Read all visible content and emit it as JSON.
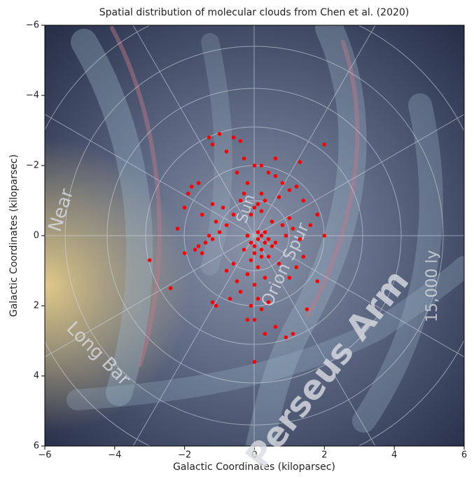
{
  "chart_data": {
    "type": "scatter",
    "title": "Spatial distribution of molecular clouds from Chen et al. (2020)",
    "x_label": "Galactic Coordinates (kiloparsec)",
    "y_label": "Galactic Coordinates (kiloparsec)",
    "color": "#ff0000",
    "annotations": [
      "Sun",
      "Orion Spur",
      "Perseus Arm",
      "Long Bar",
      "Near",
      "15,000 ly"
    ],
    "xlim": [
      -6,
      6
    ],
    "ylim": [
      -6,
      6
    ],
    "y_inverted": true,
    "xticks": [
      {
        "value": -6,
        "label": "−6"
      },
      {
        "value": -4,
        "label": "−4"
      },
      {
        "value": -2,
        "label": "−2"
      },
      0,
      2,
      4,
      6
    ],
    "yticks": [
      {
        "value": -6,
        "label": "−6"
      },
      {
        "value": -4,
        "label": "−4"
      },
      {
        "value": -2,
        "label": "−2"
      },
      0,
      2,
      4,
      6
    ],
    "x": [
      0.1,
      0.2,
      0.3,
      0.0,
      -0.1,
      0.2,
      0.4,
      0.1,
      0.3,
      -0.2,
      0.0,
      0.2,
      -0.1,
      0.4,
      0.5,
      -0.3,
      0.1,
      -0.2,
      0.0,
      0.3,
      -0.4,
      0.1,
      0.2,
      -0.1,
      -0.2,
      0.0,
      0.4,
      -0.5,
      0.0,
      0.1,
      0.2,
      -0.1,
      0.3,
      0.2,
      -0.6,
      -0.8,
      -1.0,
      -1.2,
      -1.4,
      -1.6,
      -1.5,
      -1.7,
      -1.3,
      -1.1,
      -0.9,
      -1.2,
      -1.5,
      -2.0,
      -2.2,
      -2.0,
      -1.8,
      -1.3,
      -1.0,
      -0.6,
      -0.4,
      -1.2,
      -0.8,
      -0.3,
      0.0,
      0.2,
      0.4,
      0.6,
      0.8,
      1.0,
      1.2,
      1.4,
      1.0,
      0.8,
      0.9,
      1.1,
      1.3,
      1.6,
      1.8,
      2.0,
      1.4,
      1.2,
      1.0,
      0.7,
      0.9,
      1.1,
      1.5,
      1.8,
      2.0,
      1.3,
      0.6,
      -1.6,
      -1.9,
      -0.3,
      -0.5,
      0.5,
      0.6,
      -0.6,
      -0.8,
      -0.7,
      -1.2,
      -1.1,
      -3.0,
      -2.4,
      0.0,
      0.6,
      0.3,
      -0.4,
      0.7,
      -0.2
    ],
    "values": [
      0.1,
      0.0,
      0.2,
      0.3,
      0.2,
      0.4,
      0.1,
      -0.1,
      -0.1,
      0.0,
      0.5,
      0.6,
      0.7,
      0.6,
      0.3,
      0.4,
      0.9,
      1.1,
      1.4,
      1.2,
      1.6,
      1.8,
      2.1,
      2.0,
      2.4,
      2.4,
      1.9,
      1.3,
      -0.8,
      -0.9,
      -0.7,
      -0.6,
      -1.0,
      -1.2,
      -0.6,
      -0.3,
      -0.1,
      0.1,
      0.2,
      0.3,
      0.5,
      0.4,
      0.0,
      -0.4,
      -0.8,
      -0.9,
      -0.6,
      0.5,
      -0.2,
      -0.8,
      -1.4,
      -2.8,
      -2.9,
      -2.8,
      -2.7,
      -2.6,
      -2.4,
      -2.2,
      -2.0,
      -2.0,
      -1.8,
      -1.7,
      -1.5,
      -1.3,
      -1.4,
      -1.0,
      -0.5,
      -0.3,
      0.0,
      -0.2,
      0.1,
      -0.3,
      -0.6,
      0.0,
      0.6,
      0.9,
      1.2,
      0.8,
      2.9,
      2.8,
      2.1,
      1.3,
      -2.6,
      -2.1,
      -2.2,
      -1.5,
      -1.2,
      -1.2,
      -1.8,
      -0.4,
      0.2,
      0.8,
      1.0,
      1.8,
      1.9,
      2.0,
      0.7,
      1.5,
      3.6,
      2.6,
      2.8,
      -1.0,
      -1.1,
      -1.5
    ]
  }
}
